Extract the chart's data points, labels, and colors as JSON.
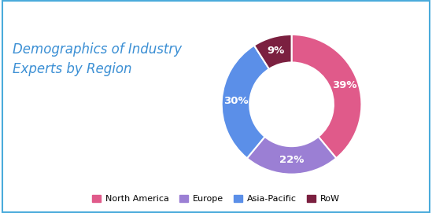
{
  "title": "Demographics of Industry\nExperts by Region",
  "title_color": "#3B8FD4",
  "title_fontsize": 12,
  "labels": [
    "North America",
    "Europe",
    "Asia-Pacific",
    "RoW"
  ],
  "values": [
    39,
    22,
    30,
    9
  ],
  "colors": [
    "#E05A8A",
    "#9B7FD4",
    "#5B8FE8",
    "#7B2040"
  ],
  "pct_labels": [
    "39%",
    "22%",
    "30%",
    "9%"
  ],
  "background_color": "#FFFFFF",
  "border_color": "#4AABDB",
  "donut_width": 0.4,
  "startangle": 90
}
